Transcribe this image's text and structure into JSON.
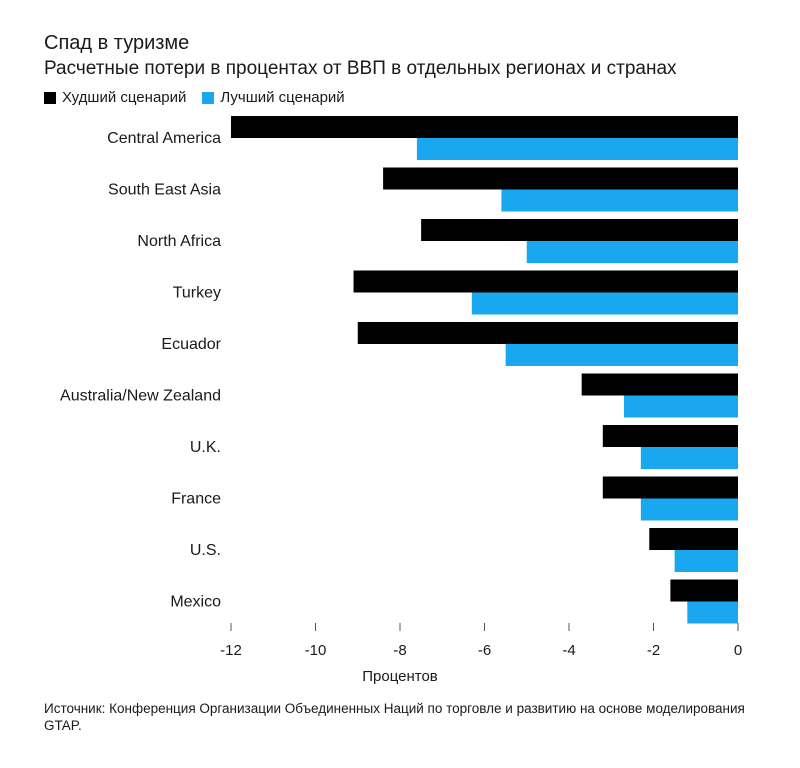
{
  "chart_data": {
    "type": "bar",
    "orientation": "horizontal",
    "title": "Спад в туризме",
    "subtitle": "Расчетные потери в процентах от ВВП в отдельных регионах и странах",
    "categories": [
      "Central America",
      "South East Asia",
      "North Africa",
      "Turkey",
      "Ecuador",
      "Australia/New Zealand",
      "U.K.",
      "France",
      "U.S.",
      "Mexico"
    ],
    "series": [
      {
        "name": "Худший сценарий",
        "color": "#000000",
        "values": [
          -12.0,
          -8.4,
          -7.5,
          -9.1,
          -9.0,
          -3.7,
          -3.2,
          -3.2,
          -2.1,
          -1.6
        ]
      },
      {
        "name": "Лучший сценарий",
        "color": "#19a7f0",
        "values": [
          -7.6,
          -5.6,
          -5.0,
          -6.3,
          -5.5,
          -2.7,
          -2.3,
          -2.3,
          -1.5,
          -1.2
        ]
      }
    ],
    "xlim": [
      -12,
      0
    ],
    "xticks": [
      -12,
      -10,
      -8,
      -6,
      -4,
      -2,
      0
    ],
    "xlabel": "Процентов",
    "ylabel": "",
    "legend": "top-left"
  },
  "source": "Источник: Конференция Организации Объединенных Наций по торговле и развитию на основе моделирования GTAP."
}
